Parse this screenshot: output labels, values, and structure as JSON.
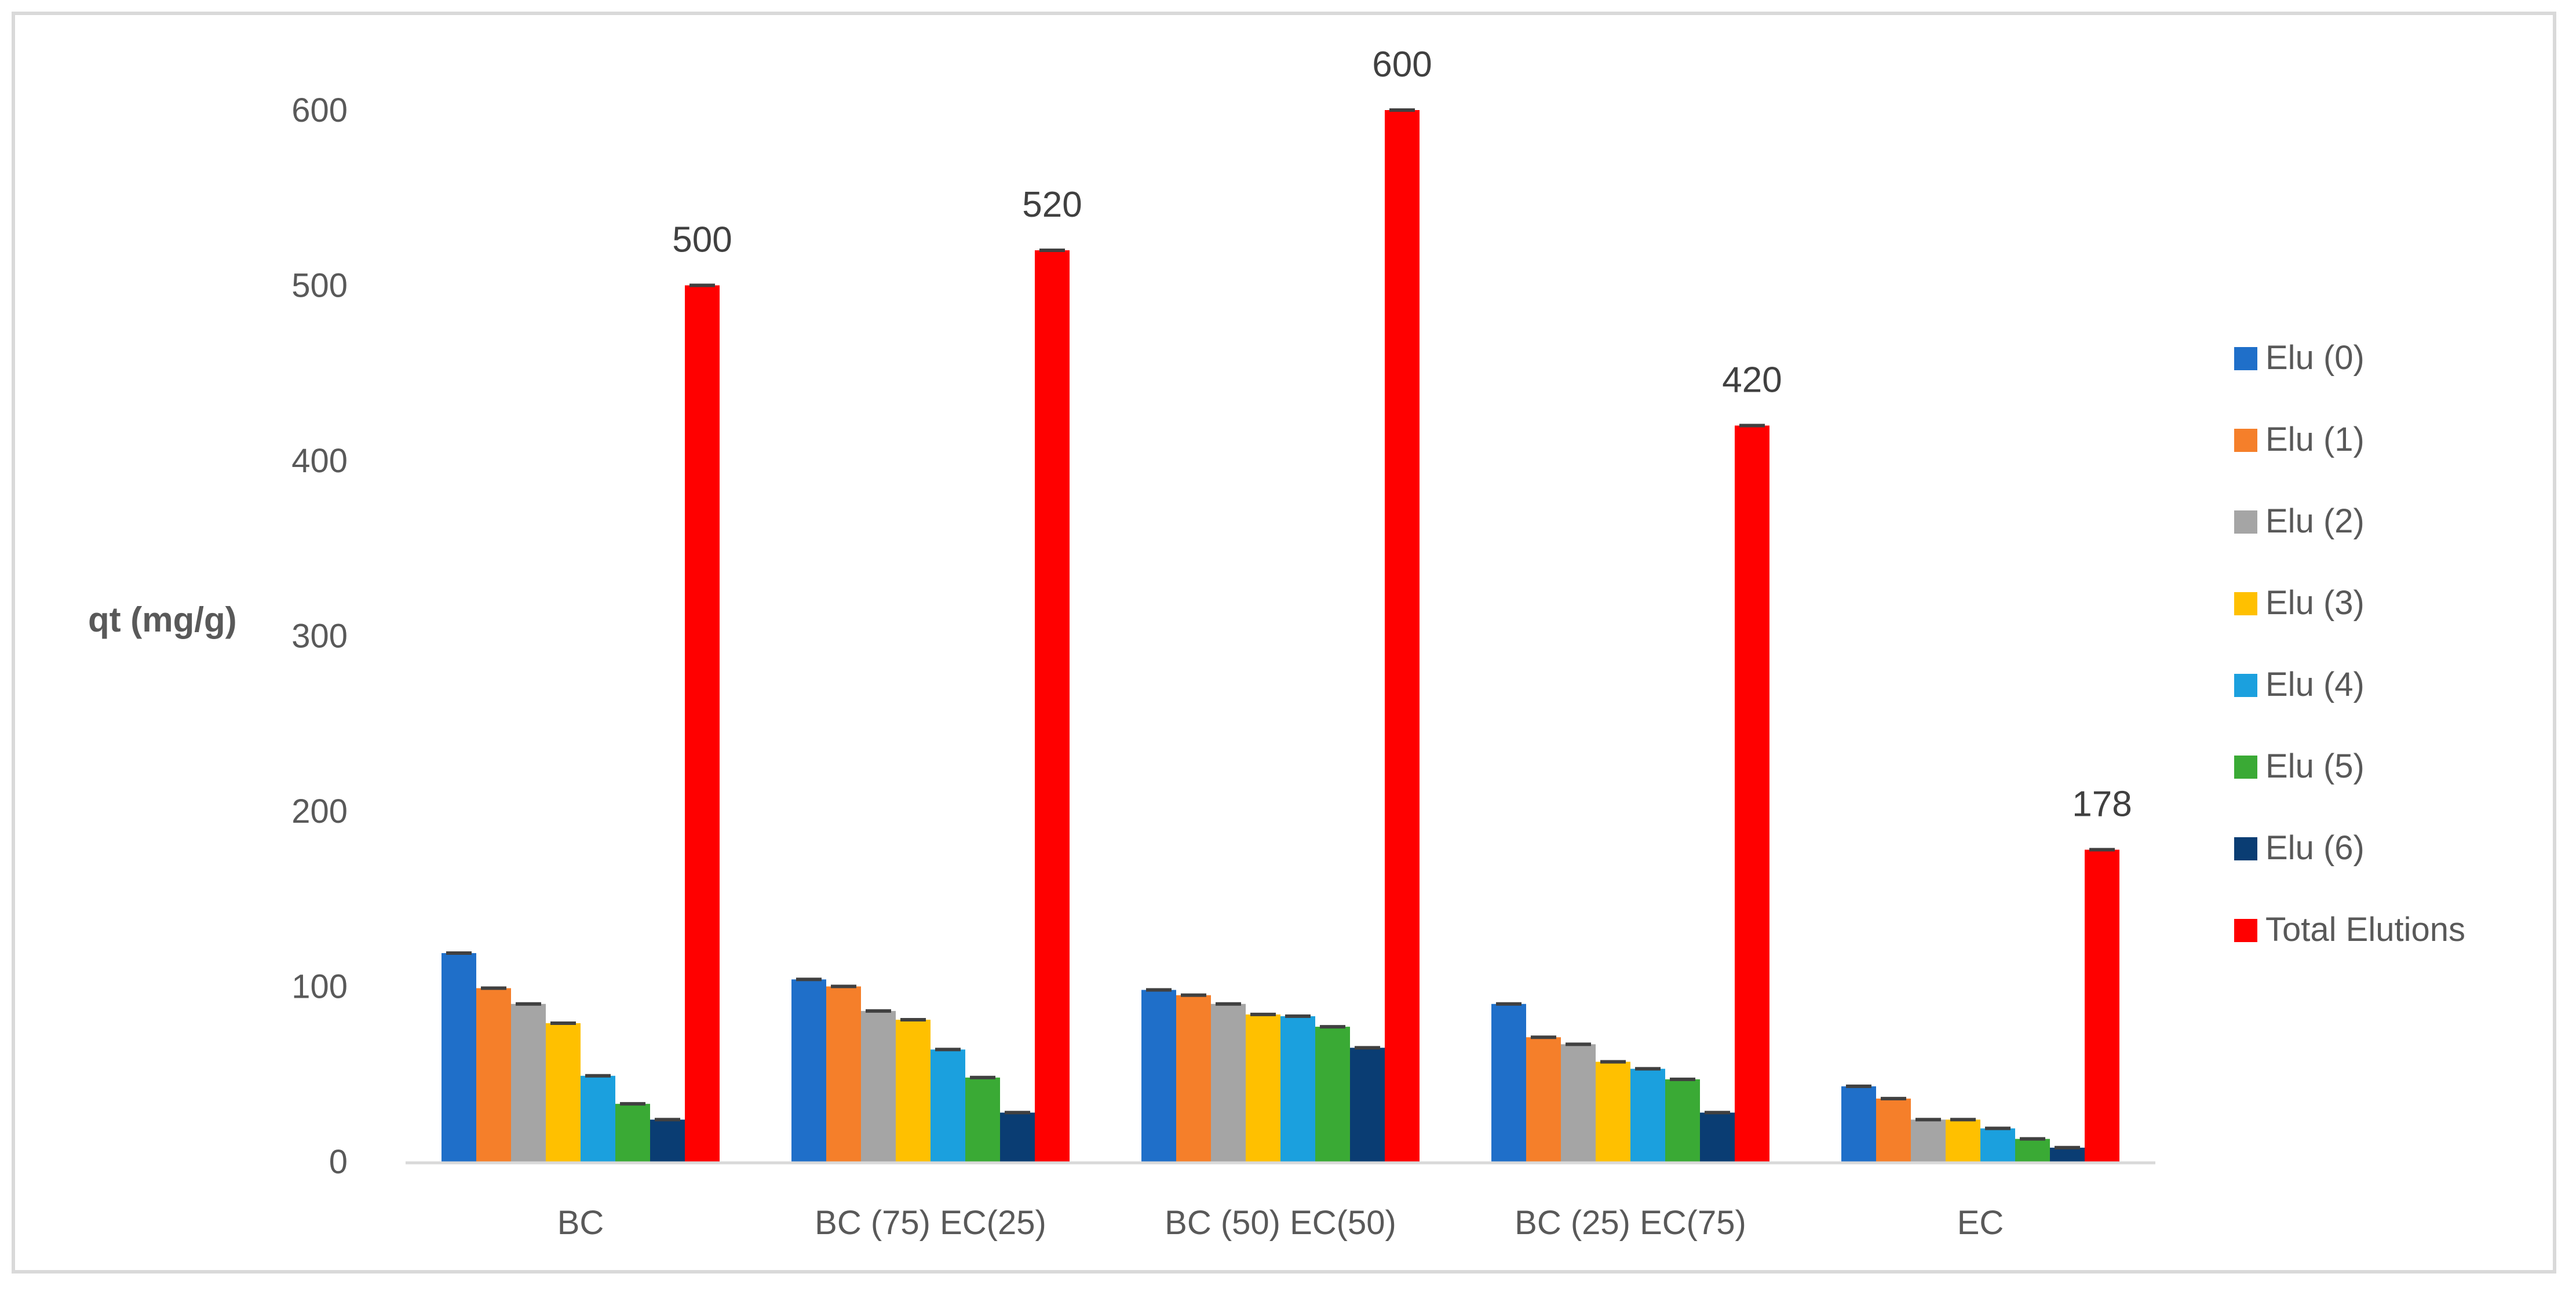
{
  "chart_data": {
    "type": "bar",
    "title": "",
    "xlabel": "",
    "ylabel": "qt (mg/g)",
    "ylim": [
      0,
      600
    ],
    "yticks": [
      0,
      100,
      200,
      300,
      400,
      500,
      600
    ],
    "grid": false,
    "legend_position": "right",
    "error_bars": true,
    "categories": [
      "BC",
      "BC (75) EC(25)",
      "BC (50) EC(50)",
      "BC (25) EC(75)",
      "EC"
    ],
    "series": [
      {
        "name": "Elu (0)",
        "color": "#1F6FC9",
        "values": [
          119,
          104,
          98,
          90,
          43
        ]
      },
      {
        "name": "Elu (1)",
        "color": "#F57F2A",
        "values": [
          99,
          100,
          95,
          71,
          36
        ]
      },
      {
        "name": "Elu (2)",
        "color": "#A5A5A5",
        "values": [
          90,
          86,
          90,
          67,
          24
        ]
      },
      {
        "name": "Elu (3)",
        "color": "#FFC000",
        "values": [
          79,
          81,
          84,
          57,
          24
        ]
      },
      {
        "name": "Elu (4)",
        "color": "#1BA0DE",
        "values": [
          49,
          64,
          83,
          53,
          19
        ]
      },
      {
        "name": "Elu (5)",
        "color": "#3AAA35",
        "values": [
          33,
          48,
          77,
          47,
          13
        ]
      },
      {
        "name": "Elu (6)",
        "color": "#0A3D73",
        "values": [
          24,
          28,
          65,
          28,
          8
        ]
      },
      {
        "name": "Total Elutions",
        "color": "#FF0000",
        "values": [
          500,
          520,
          600,
          420,
          178
        ]
      }
    ],
    "data_labels": {
      "series": "Total Elutions",
      "values": [
        "500",
        "520",
        "600",
        "420",
        "178"
      ]
    }
  }
}
